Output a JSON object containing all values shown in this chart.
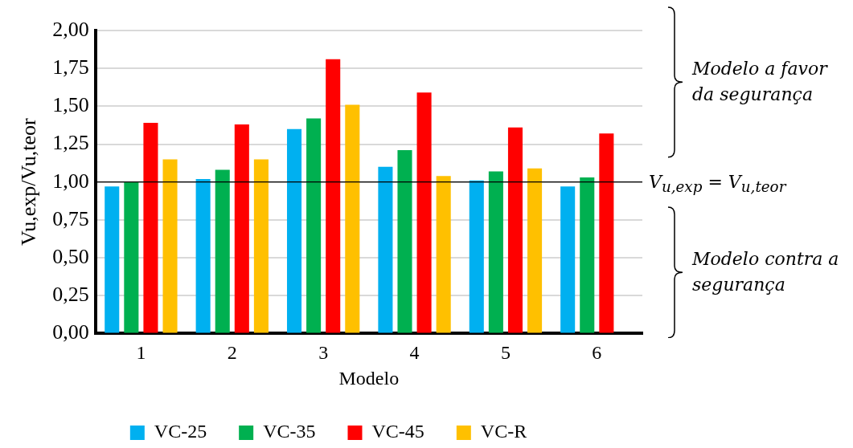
{
  "chart_data": {
    "type": "bar",
    "xlabel": "Modelo",
    "ylabel": "Vu,exp/Vu,teor",
    "categories": [
      "1",
      "2",
      "3",
      "4",
      "5",
      "6"
    ],
    "series": [
      {
        "name": "VC-25",
        "color": "#00b0f0",
        "values": [
          0.97,
          1.02,
          1.35,
          1.1,
          1.01,
          0.97
        ]
      },
      {
        "name": "VC-35",
        "color": "#00b050",
        "values": [
          1.0,
          1.08,
          1.42,
          1.21,
          1.07,
          1.03
        ]
      },
      {
        "name": "VC-45",
        "color": "#ff0000",
        "values": [
          1.39,
          1.38,
          1.81,
          1.59,
          1.36,
          1.32
        ]
      },
      {
        "name": "VC-R",
        "color": "#ffc000",
        "values": [
          1.15,
          1.15,
          1.51,
          1.04,
          1.09,
          null
        ]
      }
    ],
    "ylim": [
      0,
      2
    ],
    "yticks": [
      {
        "value": 0,
        "label": "0,00"
      },
      {
        "value": 0.25,
        "label": "0,25"
      },
      {
        "value": 0.5,
        "label": "0,50"
      },
      {
        "value": 0.75,
        "label": "0,75"
      },
      {
        "value": 1,
        "label": "1,00"
      },
      {
        "value": 1.25,
        "label": "1,25"
      },
      {
        "value": 1.5,
        "label": "1,50"
      },
      {
        "value": 1.75,
        "label": "1,75"
      },
      {
        "value": 2,
        "label": "2,00"
      }
    ],
    "grid": "y",
    "legend": "bottom",
    "ref_lines": [
      {
        "axis": "y",
        "value": 1,
        "label": "V$_{u,exp}$ = V$_{u,teor}$",
        "color": "#000000"
      }
    ],
    "annotations": [
      "Modelo a favor da segurança",
      "Modelo contra a segurança"
    ]
  }
}
